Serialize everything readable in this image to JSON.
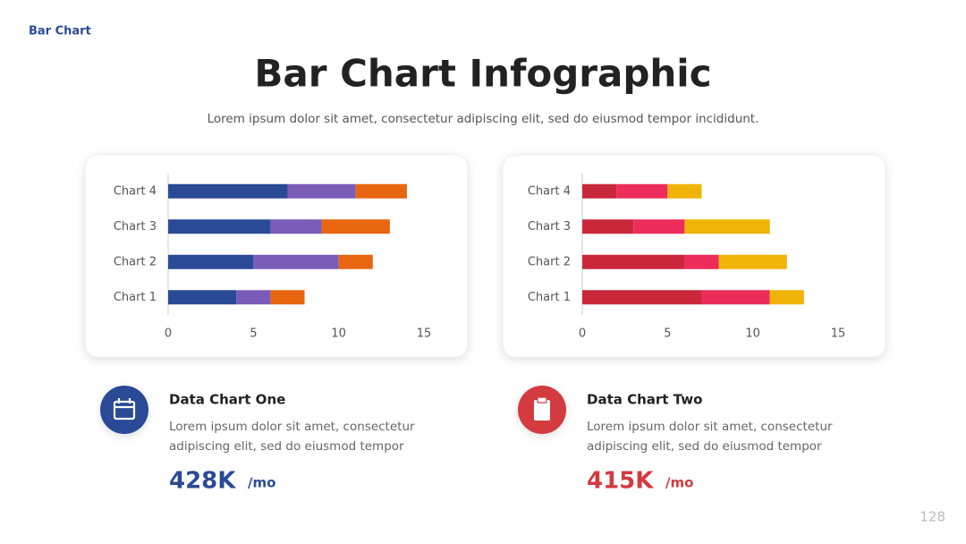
{
  "header": {
    "label": "Bar Chart",
    "title": "Bar Chart Infographic",
    "subtitle": "Lorem ipsum dolor sit amet, consectetur adipiscing elit, sed do eiusmod tempor incididunt."
  },
  "chart_data": [
    {
      "type": "bar",
      "orientation": "horizontal",
      "stacked": true,
      "categories": [
        "Chart 1",
        "Chart 2",
        "Chart 3",
        "Chart 4"
      ],
      "series": [
        {
          "color": "#2b4a96",
          "values": [
            4,
            5,
            6,
            7
          ]
        },
        {
          "color": "#7a5bb8",
          "values": [
            2,
            5,
            3,
            4
          ]
        },
        {
          "color": "#e8660f",
          "values": [
            2,
            2,
            4,
            3
          ]
        }
      ],
      "xlim": [
        0,
        15
      ],
      "xticks": [
        0,
        5,
        10,
        15
      ]
    },
    {
      "type": "bar",
      "orientation": "horizontal",
      "stacked": true,
      "categories": [
        "Chart 1",
        "Chart 2",
        "Chart 3",
        "Chart 4"
      ],
      "series": [
        {
          "color": "#c9283a",
          "values": [
            7,
            6,
            3,
            2
          ]
        },
        {
          "color": "#ec2d5c",
          "values": [
            4,
            2,
            3,
            3
          ]
        },
        {
          "color": "#f0b408",
          "values": [
            2,
            4,
            5,
            2
          ]
        }
      ],
      "xlim": [
        0,
        15
      ],
      "xticks": [
        0,
        5,
        10,
        15
      ]
    }
  ],
  "cards": [
    {
      "title": "Data Chart One",
      "body": [
        "Lorem ipsum dolor sit amet, consectetur",
        "adipiscing elit, sed do eiusmod tempor"
      ],
      "value": "428K",
      "unit": "/mo",
      "color": "#2b4a96"
    },
    {
      "title": "Data Chart Two",
      "body": [
        "Lorem ipsum dolor sit amet, consectetur",
        "adipiscing elit, sed do eiusmod tempor"
      ],
      "value": "415K",
      "unit": "/mo",
      "color": "#d33a3f"
    }
  ],
  "page_number": "128"
}
